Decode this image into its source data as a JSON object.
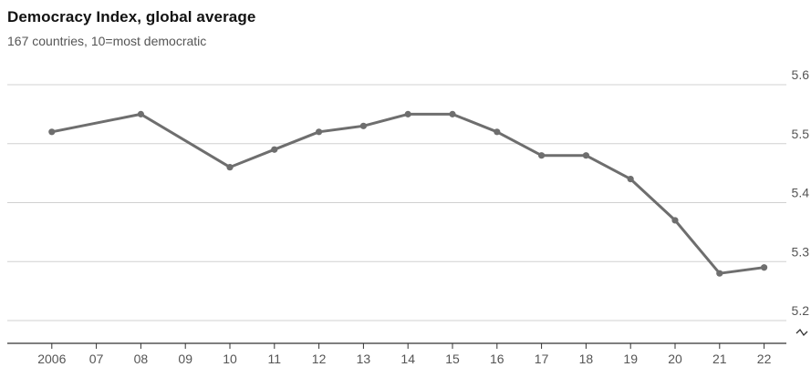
{
  "chart_data": {
    "type": "line",
    "title": "Democracy Index, global average",
    "subtitle": "167 countries, 10=most democratic",
    "x": [
      2006,
      2007,
      2008,
      2009,
      2010,
      2011,
      2012,
      2013,
      2014,
      2015,
      2016,
      2017,
      2018,
      2019,
      2020,
      2021,
      2022
    ],
    "x_tick_labels": [
      "2006",
      "07",
      "08",
      "09",
      "10",
      "11",
      "12",
      "13",
      "14",
      "15",
      "16",
      "17",
      "18",
      "19",
      "20",
      "21",
      "22"
    ],
    "series": [
      {
        "x": [
          2006,
          2008,
          2010,
          2011,
          2012,
          2013,
          2014,
          2015,
          2016,
          2017,
          2018,
          2019,
          2020,
          2021,
          2022
        ],
        "values": [
          5.52,
          5.55,
          5.46,
          5.49,
          5.52,
          5.53,
          5.55,
          5.55,
          5.52,
          5.48,
          5.48,
          5.44,
          5.37,
          5.28,
          5.29
        ],
        "color": "#6e6e6e"
      }
    ],
    "y_ticks": [
      "5.2",
      "5.3",
      "5.4",
      "5.5",
      "5.6"
    ],
    "ylim": [
      5.2,
      5.6
    ],
    "xlim": [
      2005,
      2022.5
    ],
    "y_axis_side": "right",
    "y_axis_break": true,
    "grid": "horizontal",
    "gridline_color": "#d0d0d0",
    "axis_color": "#333333"
  }
}
